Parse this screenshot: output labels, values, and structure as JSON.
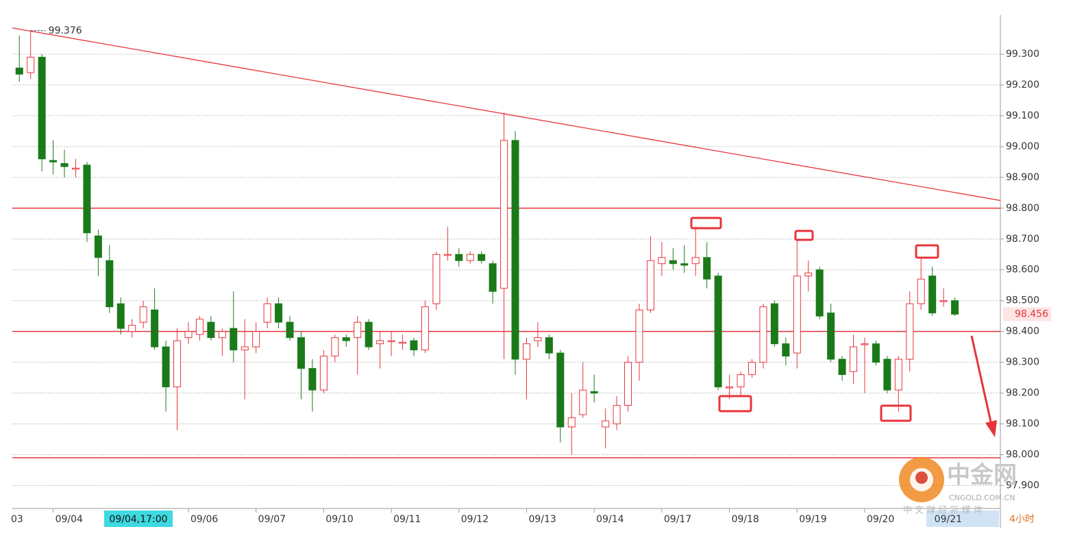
{
  "chart_data": {
    "type": "candlestick",
    "timeframe": "4小时",
    "crosshair_label": "09/04,17:00",
    "high_label": 99.376,
    "current_price": 98.456,
    "categories": [
      null,
      null,
      null,
      "09/04",
      null,
      null,
      null,
      null,
      null,
      null,
      null,
      null,
      null,
      null,
      null,
      "09/06",
      null,
      null,
      null,
      null,
      null,
      "09/07",
      null,
      null,
      null,
      null,
      null,
      "09/10",
      null,
      null,
      null,
      null,
      null,
      "09/11",
      null,
      null,
      null,
      null,
      null,
      "09/12",
      null,
      null,
      null,
      null,
      null,
      "09/13",
      null,
      null,
      null,
      null,
      null,
      "09/14",
      null,
      null,
      null,
      null,
      null,
      "09/17",
      null,
      null,
      null,
      null,
      null,
      "09/18",
      null,
      null,
      null,
      null,
      null,
      "09/19",
      null,
      null,
      null,
      null,
      null,
      "09/20",
      null,
      null,
      null,
      null,
      null,
      "09/21",
      null,
      null
    ],
    "left_edge_label": "03",
    "open": [
      99.255,
      99.24,
      99.29,
      98.955,
      98.945,
      98.93,
      98.94,
      98.71,
      98.63,
      98.49,
      98.4,
      98.43,
      98.47,
      98.35,
      98.22,
      98.38,
      98.39,
      98.43,
      98.38,
      98.41,
      98.34,
      98.35,
      98.43,
      98.49,
      98.43,
      98.38,
      98.28,
      98.21,
      98.32,
      98.38,
      98.38,
      98.43,
      98.36,
      98.37,
      98.365,
      98.37,
      98.34,
      98.49,
      98.65,
      98.65,
      98.63,
      98.65,
      98.62,
      98.54,
      99.02,
      98.31,
      98.37,
      98.38,
      98.33,
      98.09,
      98.13,
      98.205,
      98.09,
      98.1,
      98.16,
      98.3,
      98.47,
      98.62,
      98.63,
      98.62,
      98.62,
      98.64,
      98.58,
      98.22,
      98.22,
      98.26,
      98.3,
      98.49,
      98.36,
      98.33,
      98.58,
      98.6,
      98.46,
      98.31,
      98.27,
      98.36,
      98.36,
      98.31,
      98.21,
      98.31,
      98.49,
      98.58,
      98.5,
      98.5
    ],
    "high": [
      99.36,
      99.376,
      99.3,
      99.02,
      98.99,
      98.96,
      98.95,
      98.73,
      98.68,
      98.51,
      98.44,
      98.5,
      98.54,
      98.37,
      98.41,
      98.43,
      98.45,
      98.45,
      98.41,
      98.53,
      98.44,
      98.43,
      98.51,
      98.51,
      98.45,
      98.4,
      98.31,
      98.34,
      98.39,
      98.39,
      98.45,
      98.44,
      98.4,
      98.4,
      98.39,
      98.38,
      98.5,
      98.66,
      98.74,
      98.67,
      98.66,
      98.66,
      98.63,
      99.11,
      99.05,
      98.38,
      98.43,
      98.39,
      98.34,
      98.2,
      98.3,
      98.26,
      98.15,
      98.19,
      98.32,
      98.49,
      98.71,
      98.69,
      98.67,
      98.68,
      98.74,
      98.69,
      98.59,
      98.26,
      98.27,
      98.31,
      98.49,
      98.5,
      98.38,
      98.7,
      98.63,
      98.61,
      98.49,
      98.32,
      98.39,
      98.38,
      98.37,
      98.32,
      98.32,
      98.53,
      98.64,
      98.61,
      98.54,
      98.51
    ],
    "low": [
      99.21,
      99.22,
      98.92,
      98.91,
      98.9,
      98.9,
      98.69,
      98.58,
      98.46,
      98.39,
      98.38,
      98.41,
      98.34,
      98.14,
      98.08,
      98.36,
      98.37,
      98.37,
      98.32,
      98.3,
      98.18,
      98.33,
      98.41,
      98.41,
      98.37,
      98.18,
      98.14,
      98.2,
      98.3,
      98.35,
      98.26,
      98.34,
      98.28,
      98.32,
      98.34,
      98.32,
      98.33,
      98.47,
      98.63,
      98.61,
      98.62,
      98.62,
      98.49,
      98.31,
      98.26,
      98.18,
      98.35,
      98.31,
      98.04,
      98.0,
      98.12,
      98.17,
      98.02,
      98.08,
      98.14,
      98.24,
      98.46,
      98.58,
      98.6,
      98.59,
      98.58,
      98.54,
      98.21,
      98.18,
      98.19,
      98.25,
      98.28,
      98.35,
      98.29,
      98.28,
      98.53,
      98.44,
      98.3,
      98.24,
      98.23,
      98.2,
      98.29,
      98.2,
      98.14,
      98.27,
      98.47,
      98.45,
      98.48,
      98.45
    ],
    "close": [
      99.235,
      99.29,
      98.96,
      98.95,
      98.935,
      98.93,
      98.72,
      98.64,
      98.48,
      98.41,
      98.42,
      98.48,
      98.35,
      98.22,
      98.37,
      98.4,
      98.44,
      98.38,
      98.4,
      98.34,
      98.35,
      98.4,
      98.49,
      98.43,
      98.38,
      98.28,
      98.21,
      98.32,
      98.38,
      98.37,
      98.43,
      98.35,
      98.37,
      98.37,
      98.365,
      98.34,
      98.48,
      98.65,
      98.65,
      98.63,
      98.65,
      98.63,
      98.53,
      99.02,
      98.31,
      98.36,
      98.38,
      98.33,
      98.09,
      98.12,
      98.21,
      98.2,
      98.11,
      98.16,
      98.3,
      98.47,
      98.63,
      98.64,
      98.62,
      98.615,
      98.64,
      98.57,
      98.22,
      98.22,
      98.26,
      98.3,
      98.48,
      98.36,
      98.32,
      98.58,
      98.59,
      98.45,
      98.31,
      98.26,
      98.35,
      98.36,
      98.3,
      98.21,
      98.31,
      98.49,
      98.57,
      98.46,
      98.5,
      98.456
    ],
    "up_color": "#e8333a",
    "down_color": "#1a7a1a",
    "line_color": "#e8333a",
    "levels": [
      98.8,
      98.4,
      97.99
    ],
    "trendline": {
      "start": 99.385,
      "end": 98.825
    },
    "ylim": [
      97.83,
      99.42
    ],
    "yticks": [
      {
        "value": 97.9,
        "label": "97.900"
      },
      {
        "value": 98.0,
        "label": "98.000"
      },
      {
        "value": 98.1,
        "label": "98.100"
      },
      {
        "value": 98.2,
        "label": "98.200"
      },
      {
        "value": 98.3,
        "label": "98.300"
      },
      {
        "value": 98.4,
        "label": "98.400"
      },
      {
        "value": 98.5,
        "label": "98.500"
      },
      {
        "value": 98.6,
        "label": "98.600"
      },
      {
        "value": 98.7,
        "label": "98.700"
      },
      {
        "value": 98.8,
        "label": "98.800"
      },
      {
        "value": 98.9,
        "label": "98.900"
      },
      {
        "value": 99.0,
        "label": "99.000"
      },
      {
        "value": 99.1,
        "label": "99.100"
      },
      {
        "value": 99.2,
        "label": "99.200"
      },
      {
        "value": 99.3,
        "label": "99.300"
      }
    ],
    "grid": true
  },
  "watermark": {
    "brand": "中金网",
    "domain": "CNGOLD.COM.CN",
    "slogan": "中 文 财 经 新 媒 体"
  }
}
